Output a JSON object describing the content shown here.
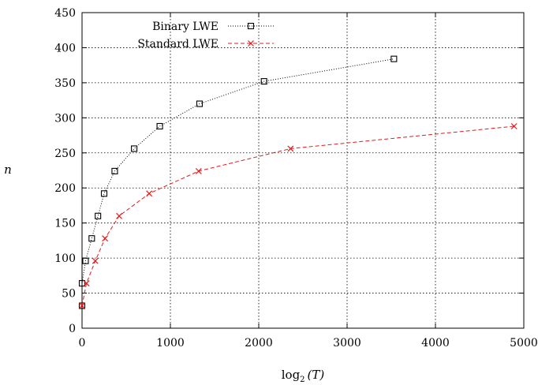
{
  "chart_data": {
    "type": "line",
    "xlabel_base": "log",
    "xlabel_sub": "2",
    "xlabel_arg": "(T)",
    "ylabel": "n",
    "xlim": [
      0,
      5000
    ],
    "ylim": [
      0,
      450
    ],
    "xticks": [
      0,
      1000,
      2000,
      3000,
      4000,
      5000
    ],
    "yticks": [
      0,
      50,
      100,
      150,
      200,
      250,
      300,
      350,
      400,
      450
    ],
    "grid": true,
    "legend_position": "top-left",
    "series": [
      {
        "name": "Binary LWE",
        "color": "#000000",
        "line_style": "dotted",
        "marker": "square",
        "points": [
          [
            0,
            32
          ],
          [
            0,
            64
          ],
          [
            40,
            96
          ],
          [
            110,
            128
          ],
          [
            180,
            160
          ],
          [
            250,
            192
          ],
          [
            370,
            224
          ],
          [
            590,
            256
          ],
          [
            880,
            288
          ],
          [
            1330,
            320
          ],
          [
            2060,
            352
          ],
          [
            3530,
            384
          ]
        ]
      },
      {
        "name": "Standard LWE",
        "color": "#e41a1c",
        "line_style": "dashed",
        "marker": "x",
        "points": [
          [
            0,
            32
          ],
          [
            50,
            64
          ],
          [
            150,
            96
          ],
          [
            260,
            128
          ],
          [
            420,
            160
          ],
          [
            760,
            192
          ],
          [
            1320,
            224
          ],
          [
            2360,
            256
          ],
          [
            4890,
            288
          ]
        ]
      }
    ]
  }
}
